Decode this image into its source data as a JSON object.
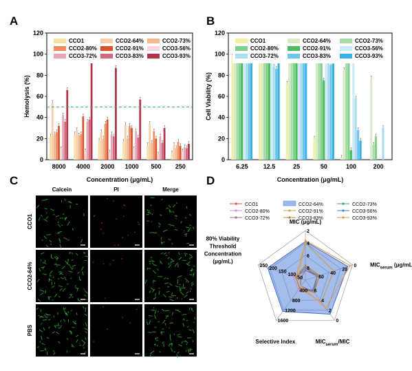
{
  "panels": {
    "a": "A",
    "b": "B",
    "c": "C",
    "d": "D"
  },
  "colors": {
    "CCO1": "#f6e2a4",
    "CCO2-64%": "#f6cfa8",
    "CCO2-73%": "#f3b98e",
    "CCO2-80%": "#ee8c5e",
    "CCO2-91%": "#d7542a",
    "CCO3-56%": "#f3d8de",
    "CCO3-72%": "#e6a5b3",
    "CCO3-83%": "#d06a7f",
    "CCO3-93%": "#b2344c"
  },
  "colors_b": {
    "CCO1": "#f3efa9",
    "CCO2-64%": "#d7ebc5",
    "CCO2-73%": "#a6dca8",
    "CCO2-80%": "#7fd08b",
    "CCO2-91%": "#4dbb5f",
    "CCO3-56%": "#cdebf4",
    "CCO3-72%": "#a9dcef",
    "CCO3-83%": "#6cc4ea",
    "CCO3-93%": "#38b0ea"
  },
  "chart_data": [
    {
      "type": "bar",
      "panel": "A",
      "ylabel": "Hemolysis (%)",
      "xlabel": "Concentration (μg/mL)",
      "ylim": [
        0,
        120
      ],
      "yticks": [
        0,
        20,
        40,
        60,
        80,
        100,
        120
      ],
      "categories": [
        "8000",
        "4000",
        "2000",
        "1000",
        "500",
        "250"
      ],
      "reference_line": {
        "y": 50,
        "style": "dashed",
        "color": "#3aa75a"
      },
      "legend": [
        "CCO1",
        "CCO2-64%",
        "CCO2-73%",
        "CCO2-80%",
        "CCO2-91%",
        "CCO3-56%",
        "CCO3-72%",
        "CCO3-83%",
        "CCO3-93%"
      ],
      "series": [
        {
          "name": "CCO1",
          "values": [
            22,
            24,
            18,
            17,
            14,
            6
          ]
        },
        {
          "name": "CCO2-64%",
          "values": [
            54,
            28,
            26,
            33,
            34,
            14
          ]
        },
        {
          "name": "CCO2-73%",
          "values": [
            24,
            23,
            20,
            20,
            16,
            11
          ]
        },
        {
          "name": "CCO2-80%",
          "values": [
            26,
            24,
            34,
            32,
            27,
            17
          ]
        },
        {
          "name": "CCO2-91%",
          "values": [
            32,
            41,
            38,
            30,
            20,
            13
          ]
        },
        {
          "name": "CCO3-56%",
          "values": [
            10,
            8,
            7,
            10,
            5,
            8
          ]
        },
        {
          "name": "CCO3-72%",
          "values": [
            42,
            36,
            24,
            27,
            22,
            12
          ]
        },
        {
          "name": "CCO3-83%",
          "values": [
            36,
            38,
            22,
            21,
            16,
            11
          ]
        },
        {
          "name": "CCO3-93%",
          "values": [
            66,
            92,
            87,
            57,
            30,
            15
          ]
        }
      ]
    },
    {
      "type": "bar",
      "panel": "B",
      "ylabel": "Cell Viability (%)",
      "xlabel": "Concentration (μg/mL)",
      "ylim": [
        0,
        120
      ],
      "yticks": [
        0,
        20,
        40,
        60,
        80,
        100,
        120
      ],
      "categories": [
        "6.25",
        "12.5",
        "25",
        "50",
        "100",
        "200"
      ],
      "legend": [
        "CCO1",
        "CCO2-64%",
        "CCO2-73%",
        "CCO2-80%",
        "CCO2-91%",
        "CCO3-56%",
        "CCO3-72%",
        "CCO3-83%",
        "CCO3-93%"
      ],
      "series": [
        {
          "name": "CCO1",
          "values": [
            98,
            97,
            72,
            20,
            2,
            0
          ]
        },
        {
          "name": "CCO2-64%",
          "values": [
            100,
            99,
            97,
            100,
            85,
            77
          ]
        },
        {
          "name": "CCO2-73%",
          "values": [
            100,
            101,
            98,
            98,
            98,
            14
          ]
        },
        {
          "name": "CCO2-80%",
          "values": [
            101,
            101,
            99,
            100,
            96,
            22
          ]
        },
        {
          "name": "CCO2-91%",
          "values": [
            102,
            101,
            99,
            75,
            9,
            0
          ]
        },
        {
          "name": "CCO3-56%",
          "values": [
            100,
            100,
            98,
            92,
            93,
            0
          ]
        },
        {
          "name": "CCO3-72%",
          "values": [
            97,
            88,
            100,
            91,
            58,
            30
          ]
        },
        {
          "name": "CCO3-83%",
          "values": [
            91,
            86,
            100,
            90,
            28,
            0
          ]
        },
        {
          "name": "CCO3-93%",
          "values": [
            98,
            97,
            98,
            91,
            18,
            0
          ]
        }
      ]
    },
    {
      "type": "radar",
      "panel": "D",
      "legend": [
        "CCO1",
        "CCO2-64%",
        "CCO2-73%",
        "CCO2-80%",
        "CCO2-91%",
        "CCO3-56%",
        "CCO3-72%",
        "CCO3-83%",
        "CCO3-93%"
      ],
      "axes": [
        {
          "label": "MIC (μg/mL)",
          "max": 8,
          "ticks": [
            "2",
            "4",
            "6",
            "8"
          ],
          "reversed": true
        },
        {
          "label_main": "MIC",
          "label_sub": "serum",
          "label_tail": " (μg/mL)",
          "ticks": [
            "0",
            "20",
            "40",
            "60"
          ],
          "max": 60,
          "reversed": true
        },
        {
          "label_main": "MIC",
          "label_sub": "serum",
          "label_tail": "/MIC",
          "ticks": [
            "0",
            "2",
            "4",
            "6"
          ],
          "max": 6,
          "reversed": true
        },
        {
          "label": "Selective Index",
          "ticks": [
            "400",
            "800",
            "1200",
            "1600"
          ],
          "max": 1600,
          "reversed": false
        },
        {
          "label_lines": [
            "80% Viability",
            "Threshold",
            "Concentration",
            "(μg/mL)"
          ],
          "ticks": [
            "50",
            "100",
            "150",
            "200",
            "250"
          ],
          "max": 250,
          "reversed": false
        }
      ],
      "series": [
        {
          "name": "CCO1",
          "values": [
            0.2,
            0.3,
            0.3,
            0.15,
            0.1
          ]
        },
        {
          "name": "CCO2-64%",
          "values": [
            0.78,
            0.9,
            0.85,
            0.78,
            0.8
          ]
        },
        {
          "name": "CCO2-73%",
          "values": [
            0.3,
            0.25,
            0.3,
            0.2,
            0.2
          ]
        },
        {
          "name": "CCO2-80%",
          "values": [
            0.25,
            0.3,
            0.3,
            0.25,
            0.25
          ]
        },
        {
          "name": "CCO2-91%",
          "values": [
            0.75,
            0.6,
            0.55,
            0.2,
            0.2
          ]
        },
        {
          "name": "CCO3-56%",
          "values": [
            0.25,
            0.25,
            0.25,
            0.2,
            0.2
          ]
        },
        {
          "name": "CCO3-72%",
          "values": [
            0.2,
            0.25,
            0.28,
            0.2,
            0.2
          ]
        },
        {
          "name": "CCO3-83%",
          "values": [
            0.3,
            0.3,
            0.3,
            0.2,
            0.2
          ]
        },
        {
          "name": "CCO3-93%",
          "values": [
            0.8,
            0.95,
            0.7,
            0.15,
            0.15
          ]
        }
      ]
    }
  ],
  "microscopy": {
    "columns": [
      "Calcein",
      "PI",
      "Merge"
    ],
    "rows": [
      "CCO1",
      "CCO2-64%",
      "PBS"
    ]
  }
}
